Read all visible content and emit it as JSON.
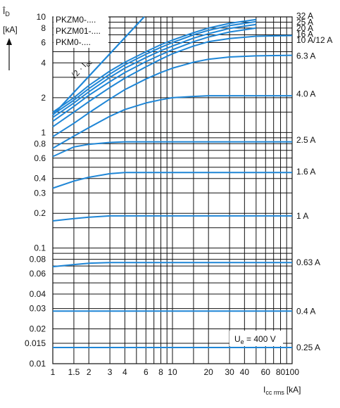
{
  "chart_data": {
    "type": "line",
    "scale": "log-log",
    "ylabel_main": "Î",
    "ylabel_sub": "D",
    "yunit": "[kA]",
    "xlabel_main": "I",
    "xlabel_sub": "cc rms",
    "xunit": "[kA]",
    "xlim": [
      1,
      100
    ],
    "ylim": [
      0.01,
      10
    ],
    "x_ticks": [
      {
        "v": 1,
        "t": "1"
      },
      {
        "v": 1.5,
        "t": "1.5"
      },
      {
        "v": 2,
        "t": "2"
      },
      {
        "v": 3,
        "t": "3"
      },
      {
        "v": 4,
        "t": "4"
      },
      {
        "v": 6,
        "t": "6"
      },
      {
        "v": 8,
        "t": "8"
      },
      {
        "v": 10,
        "t": "10"
      },
      {
        "v": 20,
        "t": "20"
      },
      {
        "v": 30,
        "t": "30"
      },
      {
        "v": 40,
        "t": "40"
      },
      {
        "v": 60,
        "t": "60"
      },
      {
        "v": 80,
        "t": "80"
      },
      {
        "v": 100,
        "t": "100"
      }
    ],
    "y_ticks": [
      {
        "v": 10,
        "t": "10"
      },
      {
        "v": 8,
        "t": "8"
      },
      {
        "v": 6,
        "t": "6"
      },
      {
        "v": 4,
        "t": "4"
      },
      {
        "v": 2,
        "t": "2"
      },
      {
        "v": 1,
        "t": "1"
      },
      {
        "v": 0.8,
        "t": "0.8"
      },
      {
        "v": 0.6,
        "t": "0.6"
      },
      {
        "v": 0.4,
        "t": "0.4"
      },
      {
        "v": 0.3,
        "t": "0.3"
      },
      {
        "v": 0.2,
        "t": "0.2"
      },
      {
        "v": 0.1,
        "t": "0.1"
      },
      {
        "v": 0.08,
        "t": "0.08"
      },
      {
        "v": 0.06,
        "t": "0.06"
      },
      {
        "v": 0.04,
        "t": "0.04"
      },
      {
        "v": 0.03,
        "t": "0.03"
      },
      {
        "v": 0.02,
        "t": "0.02"
      },
      {
        "v": 0.015,
        "t": "0.015"
      },
      {
        "v": 0.01,
        "t": "0.01"
      }
    ],
    "x_grid": [
      1,
      1.5,
      2,
      3,
      4,
      5,
      6,
      7,
      8,
      9,
      10,
      15,
      20,
      30,
      40,
      50,
      60,
      70,
      80,
      90,
      100
    ],
    "y_grid": [
      0.01,
      0.015,
      0.02,
      0.03,
      0.04,
      0.05,
      0.06,
      0.07,
      0.08,
      0.09,
      0.1,
      0.15,
      0.2,
      0.3,
      0.4,
      0.5,
      0.6,
      0.7,
      0.8,
      0.9,
      1,
      1.5,
      2,
      3,
      4,
      5,
      6,
      7,
      8,
      9,
      10
    ],
    "legend": [
      "PKZM0-....",
      "PKZM01-....",
      "PKM0-...."
    ],
    "reference_line": {
      "label_main": "√2 · I",
      "label_sub": "cc",
      "points": [
        [
          1,
          1.414
        ],
        [
          5.8,
          10
        ]
      ]
    },
    "annotation": {
      "main": "U",
      "sub": "e",
      "rest": " = 400 V"
    },
    "line_color": "#1f86d6",
    "series": [
      {
        "name": "32 A",
        "points": [
          [
            1,
            1.5
          ],
          [
            1.5,
            2.0
          ],
          [
            2,
            2.55
          ],
          [
            3,
            3.4
          ],
          [
            4,
            4.05
          ],
          [
            6,
            5.0
          ],
          [
            8,
            5.75
          ],
          [
            10,
            6.3
          ],
          [
            15,
            7.3
          ],
          [
            20,
            8.0
          ],
          [
            30,
            8.8
          ],
          [
            50,
            9.5
          ]
        ]
      },
      {
        "name": "25 A",
        "points": [
          [
            1,
            1.43
          ],
          [
            1.5,
            1.9
          ],
          [
            2,
            2.4
          ],
          [
            3,
            3.2
          ],
          [
            4,
            3.85
          ],
          [
            6,
            4.75
          ],
          [
            8,
            5.45
          ],
          [
            10,
            6.0
          ],
          [
            15,
            7.0
          ],
          [
            20,
            7.65
          ],
          [
            30,
            8.4
          ],
          [
            50,
            9.1
          ]
        ]
      },
      {
        "name": "20 A",
        "points": [
          [
            1,
            1.35
          ],
          [
            1.5,
            1.8
          ],
          [
            2,
            2.25
          ],
          [
            3,
            3.0
          ],
          [
            4,
            3.6
          ],
          [
            6,
            4.45
          ],
          [
            8,
            5.1
          ],
          [
            10,
            5.6
          ],
          [
            15,
            6.55
          ],
          [
            20,
            7.15
          ],
          [
            30,
            7.95
          ],
          [
            50,
            8.6
          ]
        ]
      },
      {
        "name": "16 A",
        "points": [
          [
            1,
            1.25
          ],
          [
            1.5,
            1.68
          ],
          [
            2,
            2.1
          ],
          [
            3,
            2.75
          ],
          [
            4,
            3.3
          ],
          [
            6,
            4.1
          ],
          [
            8,
            4.7
          ],
          [
            10,
            5.2
          ],
          [
            15,
            6.1
          ],
          [
            20,
            6.7
          ],
          [
            30,
            7.4
          ],
          [
            50,
            8.0
          ]
        ]
      },
      {
        "name": "10 A/12 A",
        "points": [
          [
            1,
            1.12
          ],
          [
            1.5,
            1.5
          ],
          [
            2,
            1.85
          ],
          [
            3,
            2.45
          ],
          [
            4,
            2.95
          ],
          [
            6,
            3.7
          ],
          [
            8,
            4.3
          ],
          [
            10,
            4.8
          ],
          [
            15,
            5.6
          ],
          [
            20,
            6.1
          ],
          [
            30,
            6.5
          ],
          [
            50,
            6.8
          ],
          [
            100,
            6.9
          ]
        ]
      },
      {
        "name": "6.3 A",
        "points": [
          [
            1,
            0.92
          ],
          [
            1.5,
            1.2
          ],
          [
            2,
            1.48
          ],
          [
            3,
            1.95
          ],
          [
            4,
            2.35
          ],
          [
            6,
            2.9
          ],
          [
            8,
            3.3
          ],
          [
            10,
            3.6
          ],
          [
            15,
            4.05
          ],
          [
            20,
            4.3
          ],
          [
            30,
            4.5
          ],
          [
            50,
            4.6
          ],
          [
            100,
            4.65
          ]
        ]
      },
      {
        "name": "4.0 A",
        "points": [
          [
            1,
            0.73
          ],
          [
            1.5,
            0.93
          ],
          [
            2,
            1.1
          ],
          [
            3,
            1.38
          ],
          [
            4,
            1.58
          ],
          [
            6,
            1.8
          ],
          [
            8,
            1.92
          ],
          [
            10,
            2.0
          ],
          [
            15,
            2.05
          ],
          [
            20,
            2.08
          ],
          [
            100,
            2.08
          ]
        ]
      },
      {
        "name": "2.5 A",
        "points": [
          [
            1,
            0.62
          ],
          [
            1.5,
            0.75
          ],
          [
            2,
            0.79
          ],
          [
            3,
            0.82
          ],
          [
            4,
            0.83
          ],
          [
            100,
            0.83
          ]
        ]
      },
      {
        "name": "1.6 A",
        "points": [
          [
            1,
            0.33
          ],
          [
            1.5,
            0.38
          ],
          [
            2,
            0.41
          ],
          [
            3,
            0.44
          ],
          [
            4,
            0.45
          ],
          [
            100,
            0.45
          ]
        ]
      },
      {
        "name": "1 A",
        "points": [
          [
            1,
            0.172
          ],
          [
            1.5,
            0.18
          ],
          [
            2,
            0.185
          ],
          [
            3,
            0.19
          ],
          [
            100,
            0.19
          ]
        ]
      },
      {
        "name": "0.63 A",
        "points": [
          [
            1,
            0.069
          ],
          [
            1.5,
            0.072
          ],
          [
            2,
            0.074
          ],
          [
            3,
            0.075
          ],
          [
            100,
            0.075
          ]
        ]
      },
      {
        "name": "0.4 A",
        "points": [
          [
            1,
            0.0285
          ],
          [
            100,
            0.0285
          ]
        ]
      },
      {
        "name": "0.25 A",
        "points": [
          [
            1,
            0.0138
          ],
          [
            100,
            0.0138
          ]
        ]
      }
    ],
    "label_y": [
      10.2,
      9.0,
      8.0,
      7.1,
      6.3,
      4.6,
      2.15,
      0.86,
      0.46,
      0.19,
      0.075,
      0.0285,
      0.0138
    ]
  }
}
